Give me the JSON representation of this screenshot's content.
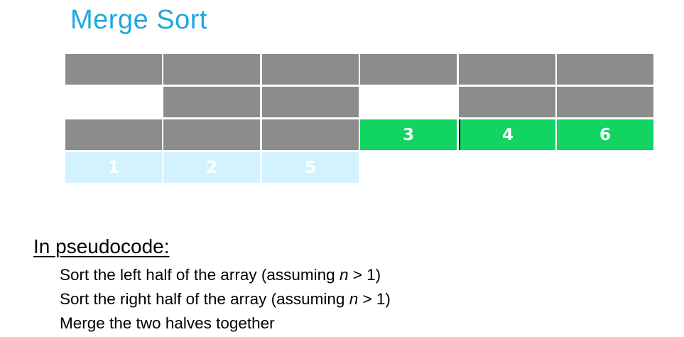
{
  "slide": {
    "title": "Merge Sort",
    "title_color": "#1fa7e0"
  },
  "diagram": {
    "colors": {
      "gray": "#8c8c8c",
      "green": "#12d463",
      "light_blue": "#d2f3fd",
      "empty": "#ffffff"
    },
    "rows": [
      {
        "cells": [
          {
            "fill": "gray",
            "label": ""
          },
          {
            "fill": "gray",
            "label": ""
          },
          {
            "fill": "gray",
            "label": ""
          },
          {
            "fill": "gray",
            "label": ""
          },
          {
            "fill": "gray",
            "label": ""
          },
          {
            "fill": "gray",
            "label": ""
          }
        ]
      },
      {
        "cells": [
          {
            "fill": "empty",
            "label": ""
          },
          {
            "fill": "gray",
            "label": ""
          },
          {
            "fill": "gray",
            "label": ""
          },
          {
            "fill": "empty",
            "label": ""
          },
          {
            "fill": "gray",
            "label": ""
          },
          {
            "fill": "gray",
            "label": ""
          }
        ]
      },
      {
        "cells": [
          {
            "fill": "gray",
            "label": ""
          },
          {
            "fill": "gray",
            "label": ""
          },
          {
            "fill": "gray",
            "label": ""
          },
          {
            "fill": "green",
            "label": "3"
          },
          {
            "fill": "green",
            "label": "4",
            "divider": true
          },
          {
            "fill": "green",
            "label": "6"
          }
        ]
      },
      {
        "cells": [
          {
            "fill": "light_blue",
            "label": "1"
          },
          {
            "fill": "light_blue",
            "label": "2"
          },
          {
            "fill": "light_blue",
            "label": "5"
          },
          {
            "fill": "empty",
            "label": ""
          },
          {
            "fill": "empty",
            "label": ""
          },
          {
            "fill": "empty",
            "label": ""
          }
        ]
      }
    ]
  },
  "pseudocode": {
    "heading": "In pseudocode:",
    "steps": [
      {
        "before": "Sort the left half of the array (assuming ",
        "var": "n",
        "after": " > 1)"
      },
      {
        "before": "Sort the right half of the array (assuming ",
        "var": "n",
        "after": " > 1)"
      },
      {
        "before": "Merge the two halves together",
        "var": "",
        "after": ""
      }
    ]
  }
}
